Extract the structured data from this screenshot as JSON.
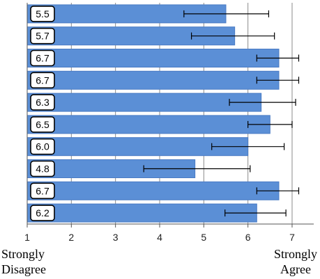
{
  "chart_data": {
    "type": "bar",
    "orientation": "horizontal",
    "xlim": [
      1,
      7.5
    ],
    "x_ticks": [
      "1",
      "2",
      "3",
      "4",
      "5",
      "6",
      "7"
    ],
    "grid": "vertical",
    "bar_color": "#5b8fd6",
    "bar_edge_color": "#4a7bc4",
    "values": [
      5.5,
      5.7,
      6.7,
      6.7,
      6.3,
      6.5,
      6.0,
      4.8,
      6.7,
      6.2
    ],
    "value_labels": [
      "5.5",
      "5.7",
      "6.7",
      "6.7",
      "6.3",
      "6.5",
      "6.0",
      "4.8",
      "6.7",
      "6.2"
    ],
    "error_low": [
      4.55,
      4.72,
      6.2,
      6.2,
      5.58,
      6.0,
      5.18,
      3.64,
      6.2,
      5.48
    ],
    "error_high": [
      6.47,
      6.6,
      7.15,
      7.15,
      7.08,
      7.0,
      6.82,
      6.05,
      7.15,
      6.86
    ]
  },
  "axis_ends": {
    "left_line1": "Strongly",
    "left_line2": "Disagree",
    "right_line1": "Strongly",
    "right_line2": "Agree"
  }
}
